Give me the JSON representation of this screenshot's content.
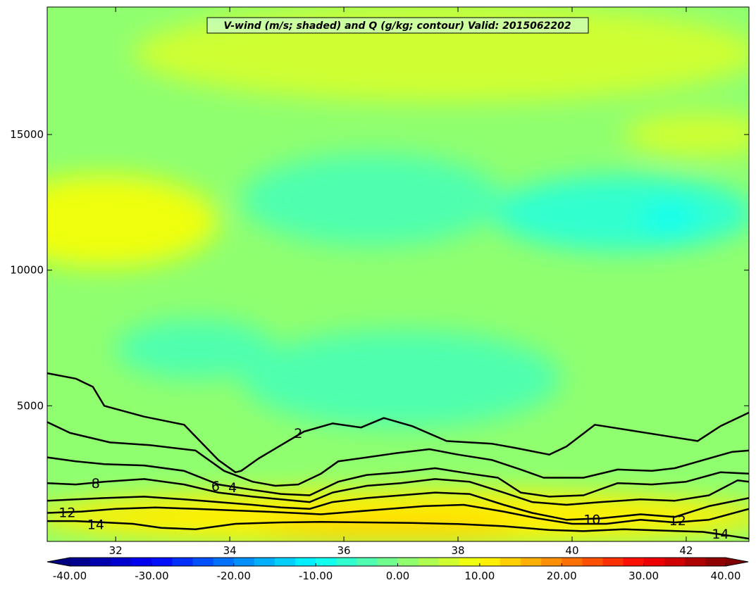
{
  "chart_data": {
    "type": "heatmap",
    "title": "V-wind (m/s; shaded) and Q (g/kg; contour) Valid: 2015062202",
    "xlabel": "",
    "ylabel": "",
    "xlim": [
      30.8,
      43.1
    ],
    "ylim": [
      0,
      19700
    ],
    "x_ticks": [
      "32",
      "34",
      "36",
      "38",
      "40",
      "42"
    ],
    "x_tick_values": [
      32,
      34,
      36,
      38,
      40,
      42
    ],
    "y_ticks": [
      "5000",
      "10000",
      "15000"
    ],
    "y_tick_values": [
      5000,
      10000,
      15000
    ],
    "shaded_variable": "V-wind (m/s)",
    "colorbar": {
      "min": -40,
      "max": 40,
      "step": 2.5,
      "extend": "both",
      "ticks": [
        "-40.00",
        "-30.00",
        "-20.00",
        "-10.00",
        "0.00",
        "10.00",
        "20.00",
        "30.00",
        "40.00"
      ],
      "tick_values": [
        -40,
        -30,
        -20,
        -10,
        0,
        10,
        20,
        30,
        40
      ],
      "colormap": "jet"
    },
    "background_value": 2,
    "shaded_regions": [
      {
        "cx": 31.6,
        "cy": 11800,
        "rx": 1.2,
        "ry": 700,
        "value": 13
      },
      {
        "cx": 31.8,
        "cy": 11800,
        "rx": 2.0,
        "ry": 1700,
        "value": 8
      },
      {
        "cx": 37.8,
        "cy": 18000,
        "rx": 5.5,
        "ry": 1800,
        "value": 5
      },
      {
        "cx": 42.2,
        "cy": 15000,
        "rx": 1.3,
        "ry": 800,
        "value": 6
      },
      {
        "cx": 40.9,
        "cy": 12100,
        "rx": 2.3,
        "ry": 1400,
        "value": -6
      },
      {
        "cx": 41.7,
        "cy": 11900,
        "rx": 0.5,
        "ry": 600,
        "value": -9
      },
      {
        "cx": 36.5,
        "cy": 12600,
        "rx": 2.3,
        "ry": 1700,
        "value": -4
      },
      {
        "cx": 33.4,
        "cy": 7100,
        "rx": 1.4,
        "ry": 1100,
        "value": -4
      },
      {
        "cx": 37.0,
        "cy": 6000,
        "rx": 2.8,
        "ry": 1800,
        "value": -4
      },
      {
        "cx": 37.0,
        "cy": 900,
        "rx": 6.5,
        "ry": 1000,
        "value": 10
      },
      {
        "cx": 36.8,
        "cy": 450,
        "rx": 2.2,
        "ry": 380,
        "value": 14
      }
    ],
    "contour_variable": "Q (g/kg)",
    "contour_levels": [
      2,
      4,
      6,
      8,
      10,
      12,
      14
    ],
    "contours": [
      {
        "level": 2,
        "x": [
          30.8,
          31.3,
          31.6,
          31.8,
          32.5,
          33.2,
          33.8,
          34.1,
          34.2,
          34.5,
          34.9,
          35.3,
          35.8,
          36.3,
          36.7,
          37.2,
          37.8,
          38.6,
          39.0,
          39.6,
          39.9,
          40.4,
          41.0,
          41.6,
          42.2,
          42.6,
          43.1
        ],
        "y": [
          6200,
          6000,
          5700,
          5000,
          4600,
          4300,
          3000,
          2550,
          2600,
          3050,
          3550,
          4050,
          4350,
          4200,
          4550,
          4250,
          3700,
          3600,
          3450,
          3200,
          3500,
          4300,
          4100,
          3900,
          3700,
          4250,
          4750
        ]
      },
      {
        "level": 4,
        "x": [
          30.8,
          31.2,
          31.9,
          32.6,
          33.4,
          33.9,
          34.4,
          34.8,
          35.2,
          35.6,
          35.9,
          36.4,
          36.9,
          37.5,
          38.0,
          38.6,
          39.1,
          39.5,
          40.2,
          40.8,
          41.4,
          41.8,
          42.3,
          42.8,
          43.1
        ],
        "y": [
          4400,
          4000,
          3650,
          3550,
          3350,
          2600,
          2200,
          2050,
          2100,
          2500,
          2950,
          3100,
          3250,
          3400,
          3200,
          3000,
          2650,
          2350,
          2350,
          2650,
          2600,
          2700,
          3000,
          3300,
          3350
        ]
      },
      {
        "level": 6,
        "x": [
          30.8,
          31.3,
          31.8,
          32.5,
          33.2,
          33.8,
          34.4,
          34.9,
          35.4,
          35.9,
          36.4,
          37.0,
          37.6,
          38.2,
          38.7,
          39.1,
          39.6,
          40.2,
          40.8,
          41.4,
          42.0,
          42.6,
          43.1
        ],
        "y": [
          3100,
          2950,
          2850,
          2800,
          2600,
          2100,
          1900,
          1750,
          1700,
          2200,
          2450,
          2550,
          2700,
          2500,
          2350,
          1800,
          1650,
          1700,
          2150,
          2100,
          2200,
          2550,
          2500
        ]
      },
      {
        "level": 8,
        "x": [
          30.8,
          31.3,
          31.8,
          32.5,
          33.2,
          33.8,
          34.4,
          34.9,
          35.4,
          35.8,
          36.4,
          37.0,
          37.6,
          38.2,
          38.8,
          39.3,
          39.9,
          40.5,
          41.2,
          41.8,
          42.4,
          42.9,
          43.1
        ],
        "y": [
          2150,
          2100,
          2200,
          2300,
          2100,
          1800,
          1650,
          1550,
          1450,
          1800,
          2050,
          2150,
          2300,
          2200,
          1800,
          1450,
          1350,
          1450,
          1550,
          1500,
          1700,
          2250,
          2200
        ]
      },
      {
        "level": 10,
        "x": [
          30.8,
          31.3,
          31.8,
          32.5,
          33.2,
          33.8,
          34.4,
          34.9,
          35.4,
          35.8,
          36.4,
          37.0,
          37.6,
          38.2,
          38.8,
          39.3,
          39.9,
          40.5,
          41.2,
          41.8,
          42.4,
          43.1
        ],
        "y": [
          1500,
          1550,
          1600,
          1650,
          1550,
          1450,
          1350,
          1250,
          1200,
          1450,
          1600,
          1700,
          1800,
          1750,
          1350,
          1050,
          800,
          850,
          1000,
          900,
          1300,
          1600
        ]
      },
      {
        "level": 12,
        "x": [
          30.8,
          31.4,
          32.0,
          32.7,
          33.4,
          34.0,
          34.6,
          35.1,
          35.6,
          36.2,
          36.8,
          37.4,
          38.1,
          38.8,
          39.4,
          40.0,
          40.6,
          41.2,
          41.8,
          42.4,
          43.1
        ],
        "y": [
          1050,
          1100,
          1200,
          1250,
          1200,
          1150,
          1100,
          1050,
          1000,
          1100,
          1200,
          1300,
          1350,
          1100,
          850,
          650,
          650,
          800,
          700,
          800,
          1200
        ]
      },
      {
        "level": 14,
        "x": [
          30.8,
          31.3,
          31.8,
          32.3,
          32.8,
          33.4,
          34.1,
          34.9,
          35.6,
          36.4,
          37.2,
          38.0,
          38.8,
          39.6,
          40.2,
          40.9,
          41.6,
          42.3,
          42.8,
          43.1
        ],
        "y": [
          750,
          750,
          700,
          650,
          500,
          450,
          650,
          700,
          720,
          700,
          680,
          640,
          560,
          420,
          380,
          450,
          400,
          350,
          200,
          100
        ]
      }
    ],
    "contour_labels": [
      {
        "text": "2",
        "x": 35.2,
        "y": 4000
      },
      {
        "text": "4",
        "x": 34.05,
        "y": 2000
      },
      {
        "text": "6",
        "x": 33.75,
        "y": 2050
      },
      {
        "text": "8",
        "x": 31.65,
        "y": 2150
      },
      {
        "text": "10",
        "x": 40.35,
        "y": 820
      },
      {
        "text": "12",
        "x": 31.15,
        "y": 1080
      },
      {
        "text": "12",
        "x": 41.85,
        "y": 780
      },
      {
        "text": "14",
        "x": 31.65,
        "y": 640
      },
      {
        "text": "14",
        "x": 42.6,
        "y": 280
      }
    ],
    "grid": false,
    "legend": "none"
  }
}
